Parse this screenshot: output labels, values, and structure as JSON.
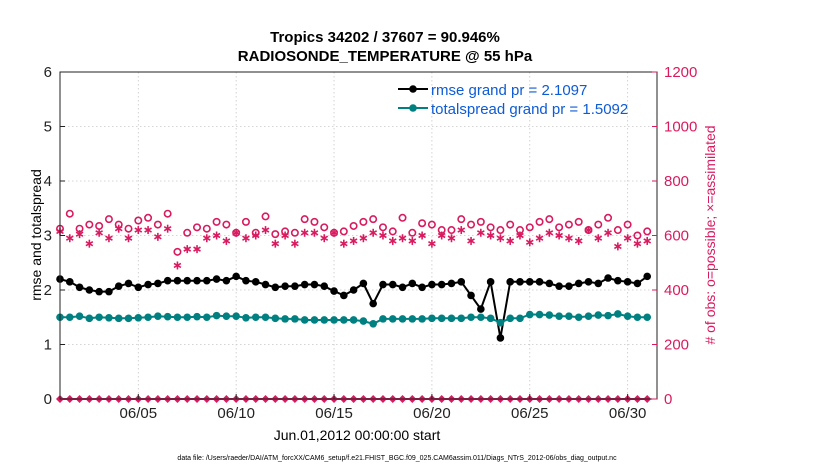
{
  "chart_data": {
    "type": "line",
    "title_line1": "Tropics 34202 / 37607 = 90.946%",
    "title_line2": "RADIOSONDE_TEMPERATURE @ 55 hPa",
    "xlabel": "Jun.01,2012 00:00:00 start",
    "ylabel_left": "rmse and totalspread",
    "ylabel_right": "# of obs: o=possible; ×=assimilated",
    "ylim_left": [
      0,
      6
    ],
    "ylim_right": [
      0,
      1200
    ],
    "xlim": [
      1.0,
      31.5
    ],
    "yticks_left": [
      "0",
      "1",
      "2",
      "3",
      "4",
      "5",
      "6"
    ],
    "yticks_right": [
      "0",
      "200",
      "400",
      "600",
      "800",
      "1000",
      "1200"
    ],
    "xticks": [
      {
        "value": 5,
        "label": "06/05"
      },
      {
        "value": 10,
        "label": "06/10"
      },
      {
        "value": 15,
        "label": "06/15"
      },
      {
        "value": 20,
        "label": "06/20"
      },
      {
        "value": 25,
        "label": "06/25"
      },
      {
        "value": 30,
        "label": "06/30"
      }
    ],
    "legend": [
      {
        "name": "rmse grand pr = 2.1097",
        "color": "#000000"
      },
      {
        "name": "totalspread grand pr = 1.5092",
        "color": "#008080"
      }
    ],
    "footnote": "data file: /Users/raeder/DAI/ATM_forcXX/CAM6_setup/f.e21.FHIST_BGC.f09_025.CAM6assim.011/Diags_NTrS_2012-06/obs_diag_output.nc",
    "x": [
      1.0,
      1.5,
      2.0,
      2.5,
      3.0,
      3.5,
      4.0,
      4.5,
      5.0,
      5.5,
      6.0,
      6.5,
      7.0,
      7.5,
      8.0,
      8.5,
      9.0,
      9.5,
      10.0,
      10.5,
      11.0,
      11.5,
      12.0,
      12.5,
      13.0,
      13.5,
      14.0,
      14.5,
      15.0,
      15.5,
      16.0,
      16.5,
      17.0,
      17.5,
      18.0,
      18.5,
      19.0,
      19.5,
      20.0,
      20.5,
      21.0,
      21.5,
      22.0,
      22.5,
      23.0,
      23.5,
      24.0,
      24.5,
      25.0,
      25.5,
      26.0,
      26.5,
      27.0,
      27.5,
      28.0,
      28.5,
      29.0,
      29.5,
      30.0,
      30.5,
      31.0
    ],
    "series": [
      {
        "name": "rmse",
        "color": "#000000",
        "values": [
          2.2,
          2.15,
          2.05,
          2.0,
          1.97,
          1.97,
          2.07,
          2.12,
          2.05,
          2.1,
          2.12,
          2.17,
          2.17,
          2.17,
          2.17,
          2.17,
          2.2,
          2.17,
          2.25,
          2.17,
          2.15,
          2.1,
          2.05,
          2.07,
          2.07,
          2.1,
          2.1,
          2.07,
          1.98,
          1.9,
          2.0,
          2.12,
          1.75,
          2.1,
          2.1,
          2.05,
          2.12,
          2.05,
          2.1,
          2.1,
          2.12,
          2.15,
          1.9,
          1.65,
          2.15,
          1.12,
          2.15,
          2.15,
          2.15,
          2.15,
          2.12,
          2.07,
          2.07,
          2.12,
          2.15,
          2.12,
          2.22,
          2.17,
          2.15,
          2.12,
          2.25
        ]
      },
      {
        "name": "totalspread",
        "color": "#008080",
        "values": [
          1.5,
          1.5,
          1.52,
          1.48,
          1.5,
          1.49,
          1.48,
          1.48,
          1.49,
          1.5,
          1.52,
          1.51,
          1.5,
          1.5,
          1.51,
          1.5,
          1.53,
          1.52,
          1.52,
          1.49,
          1.5,
          1.5,
          1.48,
          1.47,
          1.47,
          1.45,
          1.45,
          1.45,
          1.45,
          1.45,
          1.45,
          1.43,
          1.38,
          1.47,
          1.47,
          1.47,
          1.47,
          1.47,
          1.48,
          1.48,
          1.48,
          1.48,
          1.5,
          1.5,
          1.48,
          1.4,
          1.48,
          1.48,
          1.55,
          1.55,
          1.54,
          1.52,
          1.52,
          1.5,
          1.52,
          1.54,
          1.53,
          1.56,
          1.52,
          1.5,
          1.5
        ]
      },
      {
        "name": "obs_possible",
        "axis": "right",
        "color": "#d81b60",
        "values": [
          625,
          680,
          625,
          640,
          635,
          660,
          640,
          625,
          655,
          665,
          640,
          680,
          540,
          610,
          630,
          625,
          650,
          640,
          610,
          650,
          610,
          670,
          605,
          615,
          610,
          660,
          650,
          630,
          610,
          615,
          635,
          650,
          660,
          630,
          615,
          665,
          610,
          645,
          640,
          620,
          620,
          660,
          640,
          650,
          630,
          620,
          640,
          620,
          630,
          650,
          660,
          630,
          640,
          650,
          620,
          640,
          665,
          620,
          640,
          600,
          615
        ]
      },
      {
        "name": "obs_assimilated",
        "axis": "right",
        "color": "#d81b60",
        "values": [
          615,
          590,
          605,
          570,
          610,
          590,
          625,
          590,
          620,
          620,
          595,
          625,
          490,
          550,
          550,
          590,
          600,
          580,
          610,
          590,
          600,
          620,
          570,
          600,
          570,
          610,
          610,
          590,
          610,
          570,
          580,
          590,
          610,
          600,
          580,
          590,
          580,
          600,
          570,
          600,
          590,
          620,
          580,
          610,
          600,
          590,
          580,
          600,
          575,
          590,
          610,
          600,
          590,
          580,
          620,
          590,
          610,
          560,
          590,
          570,
          580
        ]
      },
      {
        "name": "obs_bottom",
        "axis": "right",
        "color": "#d81b60",
        "values": [
          0,
          0,
          0,
          0,
          0,
          0,
          0,
          0,
          0,
          0,
          0,
          0,
          0,
          0,
          0,
          0,
          0,
          0,
          0,
          0,
          0,
          0,
          0,
          0,
          0,
          0,
          0,
          0,
          0,
          0,
          0,
          0,
          0,
          0,
          0,
          0,
          0,
          0,
          0,
          0,
          0,
          0,
          0,
          0,
          0,
          0,
          0,
          0,
          0,
          0,
          0,
          0,
          0,
          0,
          0,
          0,
          0,
          0,
          0,
          0,
          0
        ]
      }
    ]
  }
}
